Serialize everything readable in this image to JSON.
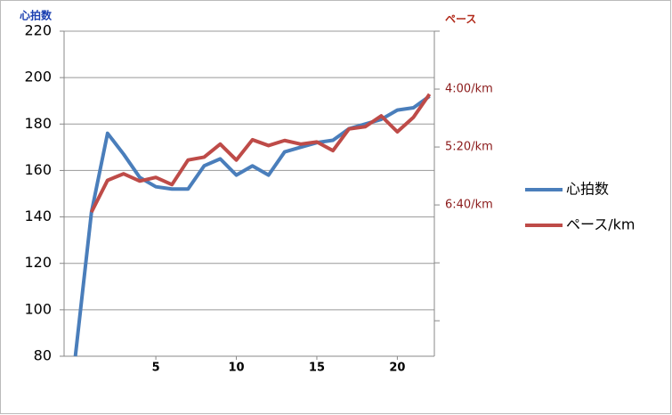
{
  "chart_data": {
    "type": "line",
    "y_label": "心拍数",
    "y2_label": "ペース",
    "x": [
      0,
      1,
      2,
      3,
      4,
      5,
      6,
      7,
      8,
      9,
      10,
      11,
      12,
      13,
      14,
      15,
      16,
      17,
      18,
      19,
      20,
      21,
      22
    ],
    "xlim": [
      -0.7,
      22.3
    ],
    "xticks": [
      5,
      10,
      15,
      20
    ],
    "ylim": [
      80,
      220
    ],
    "yticks": [
      80,
      100,
      120,
      140,
      160,
      180,
      200,
      220
    ],
    "y2lim": [
      160,
      609
    ],
    "y2_inverted": true,
    "y2ticks": [
      {
        "value": 240,
        "label": "4:00/km"
      },
      {
        "value": 320,
        "label": "5:20/km"
      },
      {
        "value": 400,
        "label": "6:40/km"
      }
    ],
    "y2_unlabeled_ticks": [
      160,
      480,
      560
    ],
    "grid": true,
    "series": [
      {
        "name": "心拍数",
        "color": "#4a7ebb",
        "values": [
          80,
          142,
          176,
          167,
          157,
          153,
          152,
          152,
          162,
          165,
          158,
          162,
          158,
          168,
          170,
          172,
          173,
          178,
          180,
          182,
          186,
          187,
          192
        ]
      },
      {
        "name": "ペース/km",
        "color": "#be4b48",
        "axis": "y2",
        "values": [
          null,
          410,
          366,
          357,
          367,
          362,
          372,
          338,
          334,
          316,
          338,
          310,
          318,
          311,
          316,
          313,
          325,
          295,
          292,
          277,
          299,
          279,
          247
        ]
      }
    ]
  }
}
